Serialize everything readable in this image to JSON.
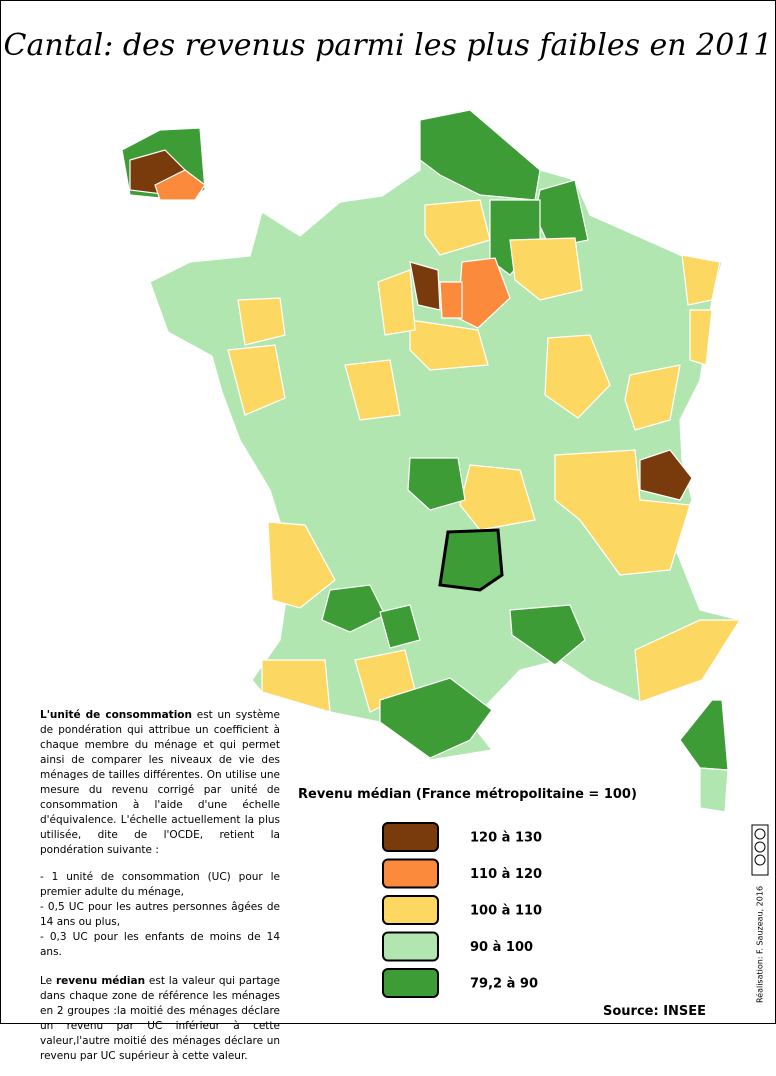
{
  "title": "Cantal: des revenus parmi les plus faibles en 2011",
  "legend": {
    "title": "Revenu médian (France métropolitaine = 100)",
    "items": [
      {
        "label": "120 à 130",
        "color": "#7a3b0c"
      },
      {
        "label": "110 à 120",
        "color": "#fb8a3c"
      },
      {
        "label": "100 à 110",
        "color": "#fcd862"
      },
      {
        "label": "90 à 100",
        "color": "#b2e6b0"
      },
      {
        "label": "79,2 à 90",
        "color": "#3d9c35"
      }
    ]
  },
  "note": {
    "p1_bold": "L'unité de consommation",
    "p1": " est un système de pondération qui attribue un coefficient à chaque membre du ménage et qui permet ainsi de comparer les niveaux de vie des ménages de tailles différentes. On utilise une mesure du revenu corrigé par unité de consommation à l'aide d'une échelle d'équivalence. L'échelle actuellement la plus utilisée, dite de l'OCDE, retient la pondération suivante :",
    "list": [
      "- 1 unité de consommation (UC) pour le premier adulte du ménage,",
      "- 0,5 UC pour les autres personnes âgées de 14 ans ou plus,",
      "- 0,3 UC pour les enfants de moins de 14 ans."
    ],
    "p2_pre": "Le ",
    "p2_bold": "revenu médian",
    "p2": " est la valeur qui partage dans chaque zone de référence les ménages en 2 groupes :la moitié des ménages déclare un revenu par UC inférieur à cette valeur,l'autre moitié des ménages déclare un revenu par UC supérieur à cette valeur."
  },
  "source": "Source: INSEE",
  "credit": "Réalisation: F. Sauzeau, 2016"
}
